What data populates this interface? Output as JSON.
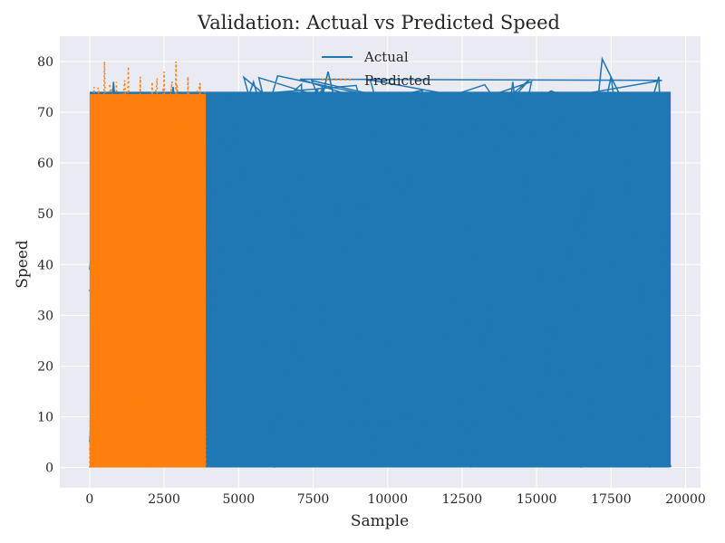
{
  "chart_data": {
    "type": "line",
    "title": "Validation: Actual vs Predicted Speed",
    "xlabel": "Sample",
    "ylabel": "Speed",
    "xlim": [
      -1000,
      20500
    ],
    "ylim": [
      -4,
      85
    ],
    "grid": true,
    "legend_position": "top-center",
    "x_ticks": [
      0,
      2500,
      5000,
      7500,
      10000,
      12500,
      15000,
      17500,
      20000
    ],
    "x_tick_labels": [
      "0",
      "2500",
      "5000",
      "7500",
      "10000",
      "12500",
      "15000",
      "17500",
      "20000"
    ],
    "y_ticks": [
      0,
      10,
      20,
      30,
      40,
      50,
      60,
      70,
      80
    ],
    "y_tick_labels": [
      "0",
      "10",
      "20",
      "30",
      "40",
      "50",
      "60",
      "70",
      "80"
    ],
    "series": [
      {
        "name": "Actual",
        "color": "#1f77b4",
        "style": "solid",
        "x_range": [
          0,
          19500
        ],
        "y_range": [
          0,
          80.5
        ],
        "x": [
          0,
          800,
          1800,
          2800,
          3900,
          4800,
          6200,
          7800,
          9500,
          11200,
          12800,
          14200,
          15800,
          17200,
          18500,
          19100,
          19400,
          19200,
          18000,
          16500,
          14000,
          11000,
          8000,
          5000,
          3900,
          4500,
          7000,
          10000,
          13000,
          16000,
          18800,
          19300,
          19400,
          19000,
          17500,
          15000,
          12000,
          9000,
          6000,
          4000,
          5500,
          8500,
          11500,
          14500,
          17000,
          19000,
          19400
        ],
        "y": [
          5,
          76,
          2,
          75,
          3,
          74,
          0,
          75,
          1,
          74,
          0,
          76,
          2,
          80.5,
          65,
          77,
          30,
          5,
          62,
          0,
          70,
          3,
          78,
          1,
          40,
          73,
          20,
          60,
          2,
          74,
          0,
          55,
          45,
          9,
          77,
          10,
          35,
          68,
          4,
          50,
          76,
          15,
          72,
          5,
          66,
          52,
          33
        ]
      },
      {
        "name": "Predicted",
        "color": "#ff7f0e",
        "style": "dotted",
        "x_range": [
          0,
          3900
        ],
        "y_range": [
          0,
          80
        ],
        "x": [
          0,
          150,
          300,
          500,
          700,
          900,
          1100,
          1300,
          1500,
          1700,
          1900,
          2100,
          2300,
          2500,
          2700,
          2900,
          3100,
          3300,
          3500,
          3700,
          3900
        ],
        "y": [
          0,
          75,
          2,
          80,
          5,
          76,
          1,
          79,
          3,
          77,
          0,
          76,
          4,
          78,
          2,
          80,
          1,
          77,
          3,
          76,
          0
        ]
      }
    ]
  }
}
